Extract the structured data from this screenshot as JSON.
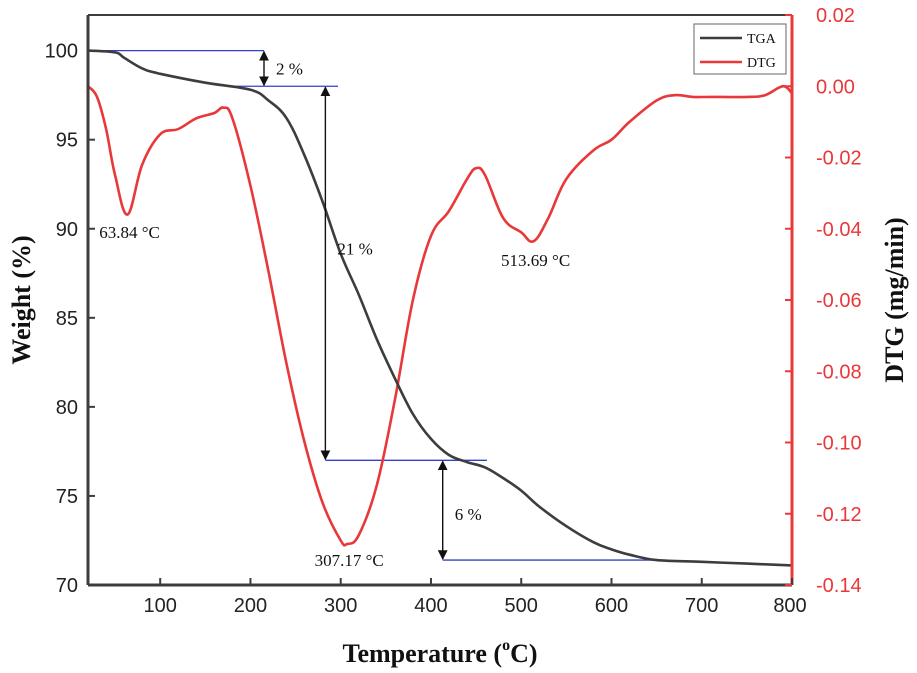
{
  "chart_data": {
    "type": "line",
    "title": "",
    "xlabel": "Temperature (°C)",
    "xlabel_main": "Temperature (",
    "xlabel_sup": "o",
    "xlabel_end": "C)",
    "ylabel": "Weight (%)",
    "y2label": "DTG (mg/min)",
    "xlim": [
      20,
      800
    ],
    "ylim": [
      70,
      102
    ],
    "y2lim": [
      -0.14,
      0.02
    ],
    "x_ticks": [
      100,
      200,
      300,
      400,
      500,
      600,
      700,
      800
    ],
    "y_ticks": [
      70,
      75,
      80,
      85,
      90,
      95,
      100
    ],
    "y2_ticks": [
      0.02,
      0.0,
      -0.02,
      -0.04,
      -0.06,
      -0.08,
      -0.1,
      -0.12,
      -0.14
    ],
    "y2_tick_labels": [
      "0.02",
      "0.00",
      "-0.02",
      "-0.04",
      "-0.06",
      "-0.08",
      "-0.10",
      "-0.12",
      "-0.14"
    ],
    "legend_position": "top-right",
    "series": [
      {
        "name": "TGA",
        "axis": "left",
        "color": "#3d3d3d",
        "x": [
          20,
          50,
          60,
          80,
          100,
          150,
          200,
          220,
          240,
          260,
          280,
          300,
          320,
          340,
          360,
          380,
          400,
          420,
          440,
          460,
          480,
          500,
          520,
          550,
          580,
          600,
          620,
          650,
          700,
          750,
          800
        ],
        "y": [
          100,
          99.9,
          99.6,
          99.0,
          98.7,
          98.2,
          97.8,
          97.2,
          96.2,
          94.1,
          91.5,
          88.6,
          86.3,
          83.8,
          81.6,
          79.6,
          78.2,
          77.3,
          76.9,
          76.6,
          76.0,
          75.3,
          74.4,
          73.3,
          72.4,
          72.0,
          71.7,
          71.4,
          71.3,
          71.2,
          71.1
        ]
      },
      {
        "name": "DTG",
        "axis": "right",
        "color": "#e8383a",
        "x": [
          20,
          30,
          40,
          50,
          63.84,
          80,
          100,
          120,
          140,
          160,
          170,
          180,
          200,
          220,
          240,
          260,
          280,
          300,
          307.17,
          320,
          340,
          360,
          380,
          400,
          420,
          440,
          450,
          460,
          480,
          500,
          513.69,
          530,
          550,
          580,
          600,
          620,
          650,
          670,
          690,
          710,
          750,
          770,
          790,
          800
        ],
        "y": [
          0.0,
          -0.003,
          -0.012,
          -0.025,
          -0.036,
          -0.022,
          -0.0135,
          -0.012,
          -0.009,
          -0.0075,
          -0.006,
          -0.009,
          -0.028,
          -0.052,
          -0.078,
          -0.1,
          -0.117,
          -0.1275,
          -0.1285,
          -0.126,
          -0.112,
          -0.088,
          -0.06,
          -0.042,
          -0.035,
          -0.026,
          -0.023,
          -0.025,
          -0.037,
          -0.041,
          -0.0435,
          -0.037,
          -0.026,
          -0.018,
          -0.015,
          -0.01,
          -0.004,
          -0.0025,
          -0.003,
          -0.003,
          -0.003,
          -0.0025,
          0.0,
          -0.002
        ]
      }
    ],
    "annotations": {
      "peak1": "63.84 °C",
      "peak2": "307.17 °C",
      "peak3": "513.69 °C",
      "loss1": "2 %",
      "loss2": "21 %",
      "loss3": "6 %"
    },
    "guides": {
      "loss1": {
        "levels": [
          100.0,
          98.0
        ],
        "x_from": 20,
        "x_arrow": 215
      },
      "loss2": {
        "levels": [
          98.0,
          77.0
        ],
        "x_from": 175,
        "x_arrow": 283
      },
      "loss3": {
        "levels": [
          77.0,
          71.4
        ],
        "x_from": 283,
        "x_arrow": 413
      }
    },
    "guide_color": "#3340c8"
  }
}
